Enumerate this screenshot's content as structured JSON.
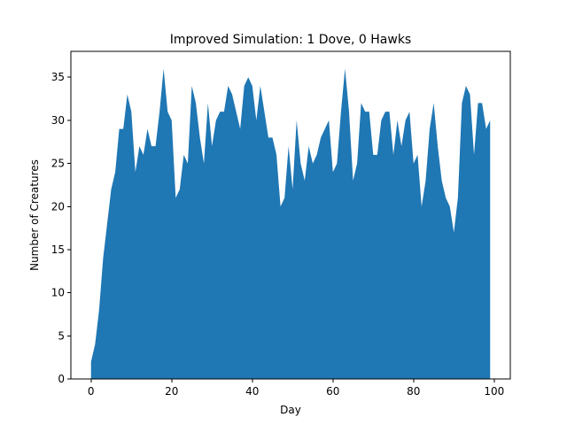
{
  "chart_data": {
    "type": "area",
    "title": "Improved Simulation: 1 Dove, 0 Hawks",
    "xlabel": "Day",
    "ylabel": "Number of Creatures",
    "xlim": [
      -5,
      104
    ],
    "ylim": [
      0,
      38
    ],
    "xticks": [
      0,
      20,
      40,
      60,
      80,
      100
    ],
    "yticks": [
      0,
      5,
      10,
      15,
      20,
      25,
      30,
      35
    ],
    "color": "#1f77b4",
    "grid": false,
    "legend": "none",
    "x": [
      0,
      1,
      2,
      3,
      4,
      5,
      6,
      7,
      8,
      9,
      10,
      11,
      12,
      13,
      14,
      15,
      16,
      17,
      18,
      19,
      20,
      21,
      22,
      23,
      24,
      25,
      26,
      27,
      28,
      29,
      30,
      31,
      32,
      33,
      34,
      35,
      36,
      37,
      38,
      39,
      40,
      41,
      42,
      43,
      44,
      45,
      46,
      47,
      48,
      49,
      50,
      51,
      52,
      53,
      54,
      55,
      56,
      57,
      58,
      59,
      60,
      61,
      62,
      63,
      64,
      65,
      66,
      67,
      68,
      69,
      70,
      71,
      72,
      73,
      74,
      75,
      76,
      77,
      78,
      79,
      80,
      81,
      82,
      83,
      84,
      85,
      86,
      87,
      88,
      89,
      90,
      91,
      92,
      93,
      94,
      95,
      96,
      97,
      98,
      99
    ],
    "values": [
      2,
      4,
      8,
      14,
      18,
      22,
      24,
      29,
      29,
      33,
      31,
      24,
      27,
      26,
      29,
      27,
      27,
      31,
      36,
      31,
      30,
      21,
      22,
      26,
      25,
      34,
      32,
      28,
      25,
      32,
      27,
      30,
      31,
      31,
      34,
      33,
      31,
      29,
      34,
      35,
      34,
      30,
      34,
      31,
      28,
      28,
      26,
      20,
      21,
      27,
      22,
      30,
      25,
      23,
      27,
      25,
      26,
      28,
      29,
      30,
      24,
      25,
      31,
      36,
      31,
      23,
      25,
      32,
      31,
      31,
      26,
      26,
      30,
      31,
      31,
      26,
      30,
      27,
      30,
      31,
      25,
      26,
      20,
      23,
      29,
      32,
      27,
      23,
      21,
      20,
      17,
      21,
      32,
      34,
      33,
      26,
      32,
      32,
      29,
      30
    ]
  }
}
